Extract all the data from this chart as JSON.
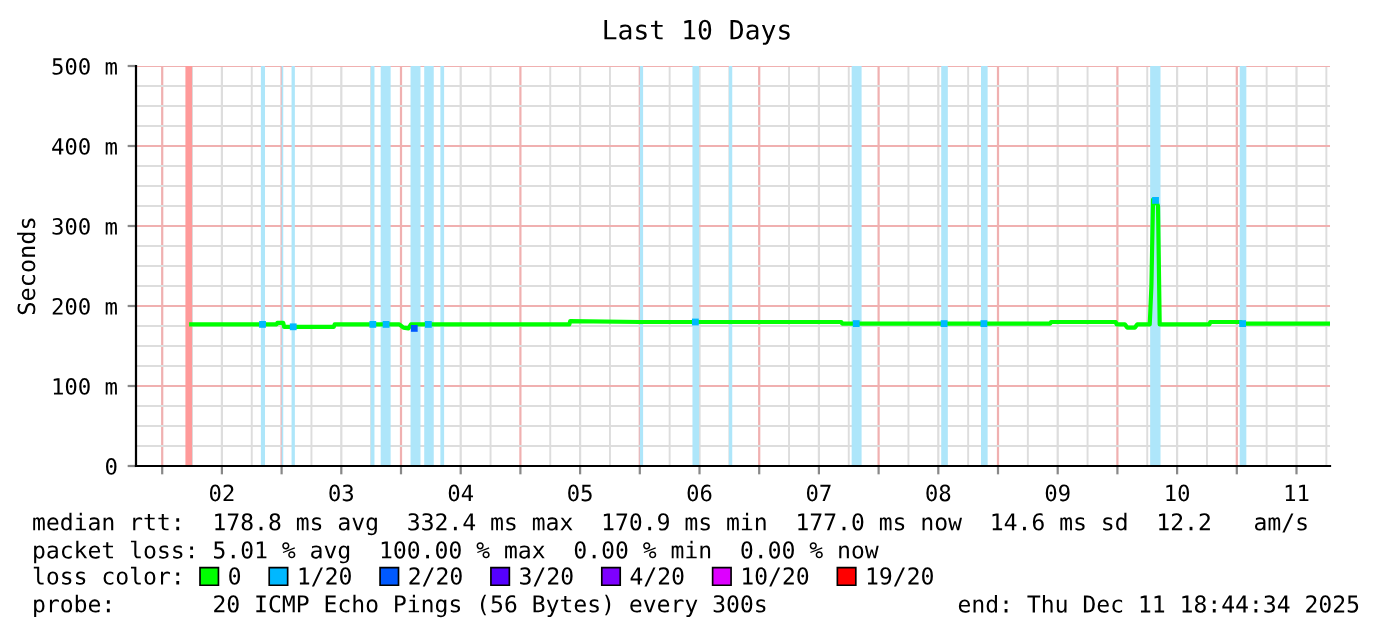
{
  "chart_data": {
    "type": "line",
    "title": "Last 10 Days",
    "ylabel": "Seconds",
    "x": [
      "2025-12-02T05:50",
      "2025-12-02T23:00",
      "2025-12-02T23:10",
      "2025-12-03T00:20",
      "2025-12-03T00:30",
      "2025-12-03T10:30",
      "2025-12-03T10:40",
      "2025-12-03T23:40",
      "2025-12-04T00:30",
      "2025-12-04T01:30",
      "2025-12-04T02:00",
      "2025-12-05T09:50",
      "2025-12-05T10:00",
      "2025-12-06T00:00",
      "2025-12-07T16:30",
      "2025-12-07T16:40",
      "2025-12-09T10:30",
      "2025-12-09T10:40",
      "2025-12-09T23:40",
      "2025-12-09T23:50",
      "2025-12-10T01:30",
      "2025-12-10T02:00",
      "2025-12-10T03:30",
      "2025-12-10T04:00",
      "2025-12-10T06:30",
      "2025-12-10T06:50",
      "2025-12-10T07:10",
      "2025-12-10T07:50",
      "2025-12-10T08:10",
      "2025-12-10T08:30",
      "2025-12-10T18:30",
      "2025-12-10T18:40",
      "2025-12-11T00:50",
      "2025-12-11T01:00",
      "2025-12-11T18:40"
    ],
    "series": [
      {
        "name": "0",
        "color": "#00ff00",
        "values": [
          177,
          177,
          179,
          179,
          174,
          174,
          177,
          177,
          173,
          172,
          177,
          177,
          181,
          180,
          180,
          178,
          178,
          180,
          180,
          177,
          177,
          173,
          173,
          177,
          177,
          225,
          333,
          330,
          325,
          177,
          177,
          180,
          180,
          178,
          178
        ]
      },
      {
        "name": "1/20",
        "color": "#00b8ff",
        "type": "scatter",
        "marker": "square",
        "x": [
          "2025-12-02T20:10",
          "2025-12-03T02:20",
          "2025-12-03T18:20",
          "2025-12-03T21:00",
          "2025-12-04T05:30",
          "2025-12-06T11:10",
          "2025-12-07T19:30",
          "2025-12-08T13:10",
          "2025-12-08T21:10",
          "2025-12-10T07:40",
          "2025-12-11T01:10"
        ],
        "values": [
          177,
          174,
          177,
          177,
          177,
          180,
          178,
          178,
          178,
          332,
          178
        ]
      },
      {
        "name": "2/20",
        "color": "#0059ff",
        "type": "scatter",
        "marker": "square",
        "x": [
          "2025-12-04T02:40"
        ],
        "values": [
          172
        ]
      },
      {
        "name": "3/20",
        "color": "#5500ff",
        "type": "scatter",
        "marker": "square",
        "values": [
          null,
          null,
          null,
          null,
          null,
          null,
          null,
          null,
          null,
          null,
          null,
          null,
          null,
          null,
          null,
          null,
          null,
          null,
          null,
          null,
          null,
          null,
          null,
          null,
          null,
          null,
          null,
          null,
          null,
          null,
          null,
          null,
          null,
          null,
          null
        ]
      },
      {
        "name": "4/20",
        "color": "#7e00ff",
        "type": "scatter",
        "marker": "square",
        "values": [
          null,
          null,
          null,
          null,
          null,
          null,
          null,
          null,
          null,
          null,
          null,
          null,
          null,
          null,
          null,
          null,
          null,
          null,
          null,
          null,
          null,
          null,
          null,
          null,
          null,
          null,
          null,
          null,
          null,
          null,
          null,
          null,
          null,
          null,
          null
        ]
      },
      {
        "name": "10/20",
        "color": "#dd00ff",
        "type": "scatter",
        "marker": "square",
        "values": [
          null,
          null,
          null,
          null,
          null,
          null,
          null,
          null,
          null,
          null,
          null,
          null,
          null,
          null,
          null,
          null,
          null,
          null,
          null,
          null,
          null,
          null,
          null,
          null,
          null,
          null,
          null,
          null,
          null,
          null,
          null,
          null,
          null,
          null,
          null
        ]
      },
      {
        "name": "19/20",
        "color": "#ff0000",
        "type": "scatter",
        "marker": "square",
        "values": [
          null,
          null,
          null,
          null,
          null,
          null,
          null,
          null,
          null,
          null,
          null,
          null,
          null,
          null,
          null,
          null,
          null,
          null,
          null,
          null,
          null,
          null,
          null,
          null,
          null,
          null,
          null,
          null,
          null,
          null,
          null,
          null,
          null,
          null,
          null
        ]
      }
    ],
    "bands": [
      {
        "axis": "x",
        "from": "2025-12-02T04:40",
        "to": "2025-12-02T06:00",
        "color": "#ff9a9a"
      },
      {
        "axis": "x",
        "from": "2025-12-02T19:50",
        "to": "2025-12-02T20:40",
        "color": "#aee6fa"
      },
      {
        "axis": "x",
        "from": "2025-12-03T00:00",
        "to": "2025-12-03T00:20",
        "color": "#aee6fa"
      },
      {
        "axis": "x",
        "from": "2025-12-03T02:00",
        "to": "2025-12-03T02:40",
        "color": "#aee6fa"
      },
      {
        "axis": "x",
        "from": "2025-12-03T17:55",
        "to": "2025-12-03T18:40",
        "color": "#aee6fa"
      },
      {
        "axis": "x",
        "from": "2025-12-03T19:55",
        "to": "2025-12-03T21:55",
        "color": "#aee6fa"
      },
      {
        "axis": "x",
        "from": "2025-12-04T01:55",
        "to": "2025-12-04T03:55",
        "color": "#aee6fa"
      },
      {
        "axis": "x",
        "from": "2025-12-04T04:40",
        "to": "2025-12-04T06:35",
        "color": "#aee6fa"
      },
      {
        "axis": "x",
        "from": "2025-12-04T07:55",
        "to": "2025-12-04T08:40",
        "color": "#aee6fa"
      },
      {
        "axis": "x",
        "from": "2025-12-06T00:00",
        "to": "2025-12-06T00:40",
        "color": "#aee6fa"
      },
      {
        "axis": "x",
        "from": "2025-12-06T10:35",
        "to": "2025-12-06T11:55",
        "color": "#aee6fa"
      },
      {
        "axis": "x",
        "from": "2025-12-06T17:55",
        "to": "2025-12-06T18:35",
        "color": "#aee6fa"
      },
      {
        "axis": "x",
        "from": "2025-12-07T18:35",
        "to": "2025-12-07T20:35",
        "color": "#aee6fa"
      },
      {
        "axis": "x",
        "from": "2025-12-08T12:35",
        "to": "2025-12-08T13:55",
        "color": "#aee6fa"
      },
      {
        "axis": "x",
        "from": "2025-12-08T20:35",
        "to": "2025-12-08T21:55",
        "color": "#aee6fa"
      },
      {
        "axis": "x",
        "from": "2025-12-10T06:35",
        "to": "2025-12-10T08:40",
        "color": "#aee6fa"
      },
      {
        "axis": "x",
        "from": "2025-12-11T00:35",
        "to": "2025-12-11T01:55",
        "color": "#aee6fa"
      }
    ],
    "xlim": [
      "2025-12-01T18:44",
      "2025-12-11T18:44"
    ],
    "xticks": [
      {
        "value": "2025-12-02T00:00",
        "label": null
      },
      {
        "value": "2025-12-02T12:00",
        "label": "02"
      },
      {
        "value": "2025-12-03T00:00",
        "label": null
      },
      {
        "value": "2025-12-03T12:00",
        "label": "03"
      },
      {
        "value": "2025-12-04T00:00",
        "label": null
      },
      {
        "value": "2025-12-04T12:00",
        "label": "04"
      },
      {
        "value": "2025-12-05T00:00",
        "label": null
      },
      {
        "value": "2025-12-05T12:00",
        "label": "05"
      },
      {
        "value": "2025-12-06T00:00",
        "label": null
      },
      {
        "value": "2025-12-06T12:00",
        "label": "06"
      },
      {
        "value": "2025-12-07T00:00",
        "label": null
      },
      {
        "value": "2025-12-07T12:00",
        "label": "07"
      },
      {
        "value": "2025-12-08T00:00",
        "label": null
      },
      {
        "value": "2025-12-08T12:00",
        "label": "08"
      },
      {
        "value": "2025-12-09T00:00",
        "label": null
      },
      {
        "value": "2025-12-09T12:00",
        "label": "09"
      },
      {
        "value": "2025-12-10T00:00",
        "label": null
      },
      {
        "value": "2025-12-10T12:00",
        "label": "10"
      },
      {
        "value": "2025-12-11T00:00",
        "label": null
      },
      {
        "value": "2025-12-11T12:00",
        "label": "11"
      }
    ],
    "ylim": [
      0,
      500
    ],
    "yticks": [
      0,
      {
        "value": 100,
        "label": "100 m"
      },
      {
        "value": 200,
        "label": "200 m"
      },
      {
        "value": 300,
        "label": "300 m"
      },
      {
        "value": 400,
        "label": "400 m"
      },
      {
        "value": 500,
        "label": "500 m"
      }
    ],
    "grid": true,
    "legend": "bottom",
    "legend_title": "loss color:",
    "line_style": "solid",
    "annotations": [
      "median rtt:  178.8 ms avg  332.4 ms max  170.9 ms min  177.0 ms now  14.6 ms sd  12.2   am/s",
      "packet loss: 5.01 % avg  100.00 % max  0.00 % min  0.00 % now",
      "probe:       20 ICMP Echo Pings (56 Bytes) every 300s",
      "end: Thu Dec 11 18:44:34 2025"
    ]
  }
}
